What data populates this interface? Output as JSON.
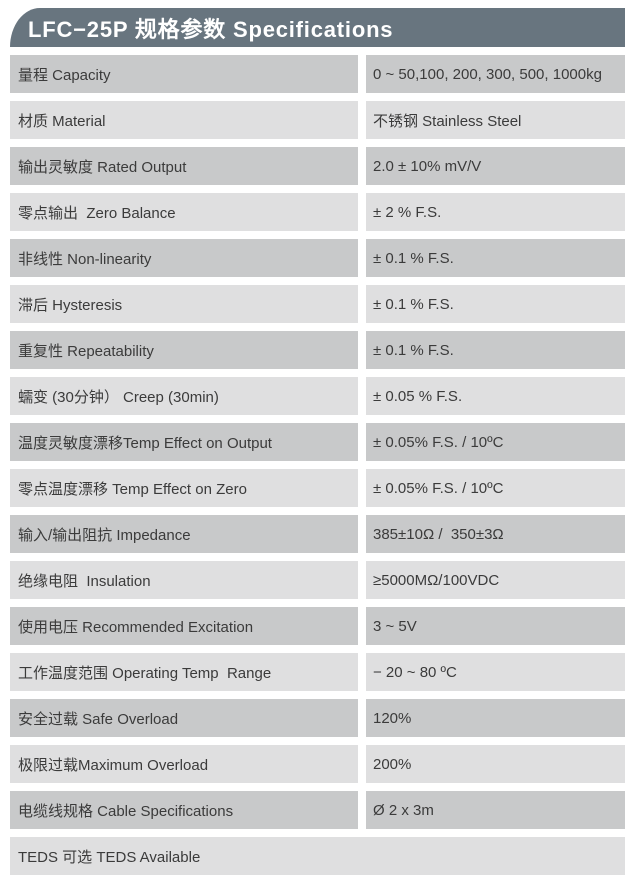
{
  "header": {
    "title": "LFC−25P 规格参数 Specifications"
  },
  "table": {
    "rows": [
      {
        "label": "量程 Capacity",
        "value": "0 ~ 50,100, 200, 300, 500, 1000kg"
      },
      {
        "label": "材质 Material",
        "value": "不锈钢 Stainless Steel"
      },
      {
        "label": "输出灵敏度 Rated Output",
        "value": "2.0 ± 10% mV/V"
      },
      {
        "label": "零点输出  Zero Balance",
        "value": "± 2 % F.S."
      },
      {
        "label": "非线性 Non-linearity",
        "value": "± 0.1 % F.S."
      },
      {
        "label": "滞后 Hysteresis",
        "value": "± 0.1 % F.S."
      },
      {
        "label": "重复性 Repeatability",
        "value": "± 0.1 % F.S."
      },
      {
        "label": "蠕变 (30分钟） Creep (30min)",
        "value": "± 0.05 % F.S."
      },
      {
        "label": "温度灵敏度漂移Temp Effect on Output",
        "value": "± 0.05% F.S. / 10ºC"
      },
      {
        "label": "零点温度漂移 Temp Effect on Zero",
        "value": "± 0.05% F.S. / 10ºC"
      },
      {
        "label": "输入/输出阻抗 Impedance",
        "value": "385±10Ω /  350±3Ω"
      },
      {
        "label": "绝缘电阻  Insulation",
        "value": "≥5000MΩ/100VDC"
      },
      {
        "label": "使用电压 Recommended Excitation",
        "value": "3 ~ 5V"
      },
      {
        "label": "工作温度范围 Operating Temp  Range",
        "value": "− 20 ~ 80 ºC"
      },
      {
        "label": "安全过载 Safe Overload",
        "value": "120%"
      },
      {
        "label": "极限过载Maximum Overload",
        "value": "200%"
      },
      {
        "label": "电缆线规格 Cable Specifications",
        "value": "Ø 2 x 3m"
      },
      {
        "label": "TEDS 可选 TEDS Available",
        "value": null
      }
    ]
  },
  "colors": {
    "header_bg": "#68757f",
    "header_text": "#ffffff",
    "row_dark": "#c8c9ca",
    "row_light": "#dfdfe0",
    "text_color": "#3b3b3b",
    "page_bg": "#ffffff"
  }
}
